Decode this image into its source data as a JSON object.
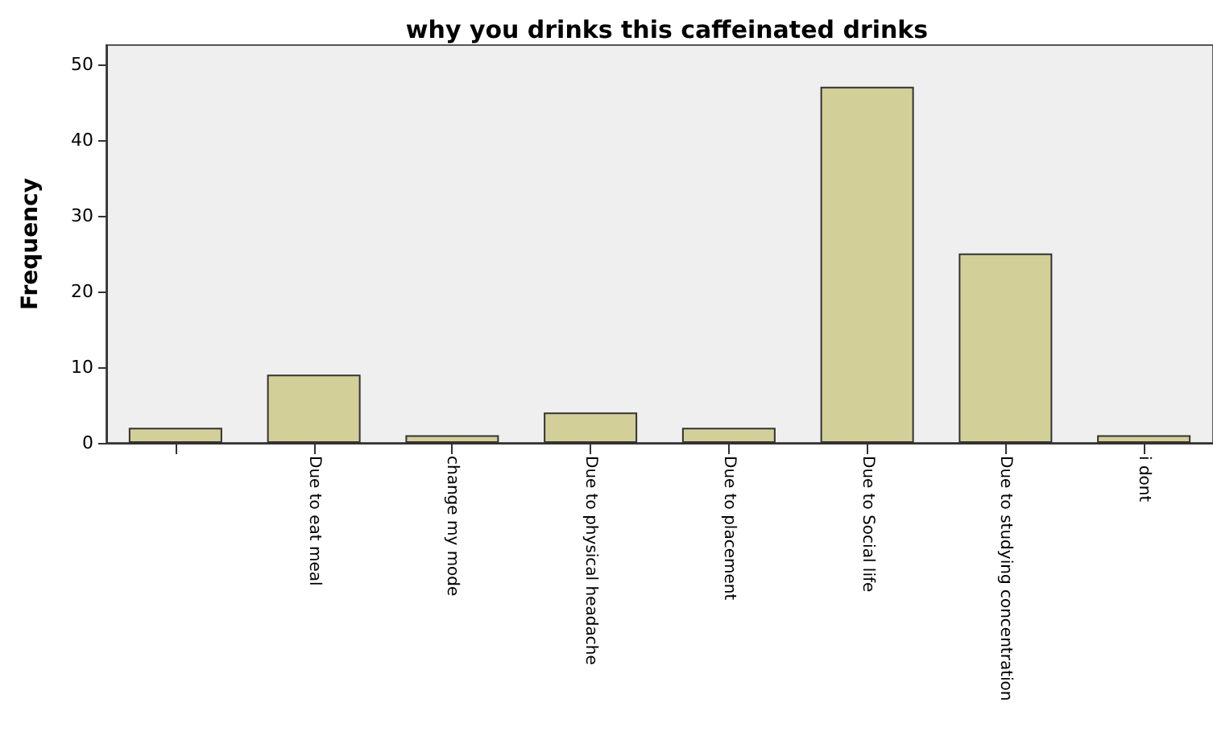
{
  "chart_data": {
    "type": "bar",
    "title": "why you drinks this caffeinated drinks",
    "ylabel": "Frequency",
    "categories": [
      null,
      "Due to eat meal",
      "change my mode",
      "Due to physical headache",
      "Due to placement",
      "Due to Social life",
      "Due to studying concentration",
      "i dont"
    ],
    "values": [
      2,
      9,
      1,
      4,
      2,
      47,
      25,
      1
    ],
    "color": "#d3cf98",
    "ylim": [
      0,
      52.5
    ],
    "yticks": [
      0,
      10,
      20,
      30,
      40,
      50
    ],
    "grid": false
  }
}
